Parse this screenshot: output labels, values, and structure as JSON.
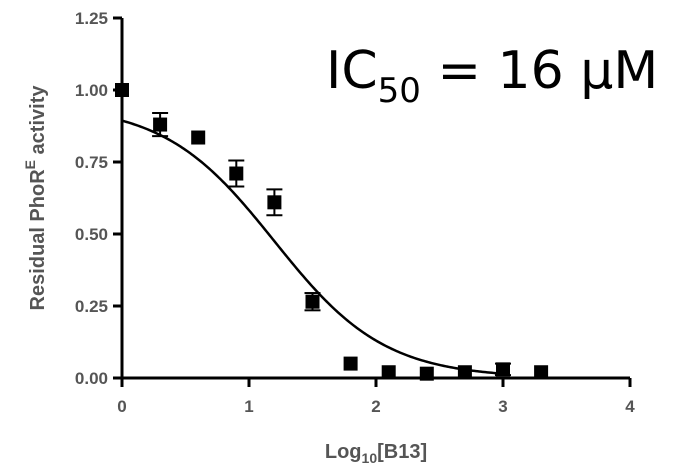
{
  "chart_data": {
    "type": "scatter",
    "xlabel": {
      "pre": "Log",
      "sub": "10",
      "post": "[B13]"
    },
    "ylabel": {
      "pre": "Residual PhoR",
      "sup": "E",
      "post": " activity"
    },
    "annotation": {
      "pre": "IC",
      "sub": "50",
      "post": " = 16 µM"
    },
    "xlim": [
      0,
      4
    ],
    "ylim": [
      0,
      1.25
    ],
    "x_ticks": [
      0,
      1,
      2,
      3,
      4
    ],
    "x_tick_labels": [
      "0",
      "1",
      "2",
      "3",
      "4"
    ],
    "y_ticks": [
      0,
      0.25,
      0.5,
      0.75,
      1.0,
      1.25
    ],
    "y_tick_labels": [
      "0.00",
      "0.25",
      "0.50",
      "0.75",
      "1.00",
      "1.25"
    ],
    "series": [
      {
        "points": [
          {
            "x": 0.0,
            "y": 1.0,
            "err": 0.0
          },
          {
            "x": 0.3,
            "y": 0.88,
            "err": 0.04
          },
          {
            "x": 0.6,
            "y": 0.835,
            "err": 0.0
          },
          {
            "x": 0.9,
            "y": 0.71,
            "err": 0.045
          },
          {
            "x": 1.2,
            "y": 0.61,
            "err": 0.045
          },
          {
            "x": 1.5,
            "y": 0.265,
            "err": 0.03
          },
          {
            "x": 1.8,
            "y": 0.05,
            "err": 0.0
          },
          {
            "x": 2.1,
            "y": 0.02,
            "err": 0.0
          },
          {
            "x": 2.4,
            "y": 0.015,
            "err": 0.0
          },
          {
            "x": 2.7,
            "y": 0.02,
            "err": 0.0
          },
          {
            "x": 3.0,
            "y": 0.03,
            "err": 0.02
          },
          {
            "x": 3.3,
            "y": 0.02,
            "err": 0.0
          }
        ]
      }
    ],
    "fit": {
      "model": "four-parameter logistic",
      "top": 0.95,
      "bottom": 0.0,
      "log_ic50": 1.2,
      "hill_slope": 1.0,
      "x_range": [
        0,
        3
      ]
    }
  }
}
